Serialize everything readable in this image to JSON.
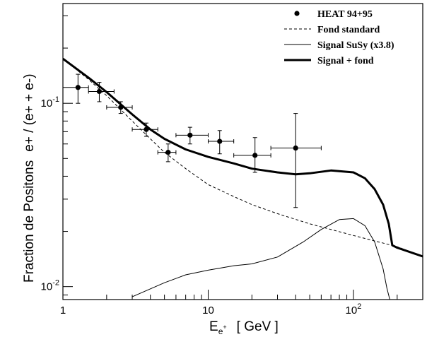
{
  "chart_data": {
    "type": "line",
    "xlabel": {
      "main": "E",
      "sub": "e",
      "sup": "+",
      "unit": "[ GeV ]"
    },
    "ylabel": {
      "main": "Fraction de Positons",
      "ratio": "e+ / (e+ + e-)"
    },
    "x_scale": "log",
    "y_scale": "log",
    "xlim": [
      1,
      300
    ],
    "ylim": [
      0.0085,
      0.35
    ],
    "x_ticks": [
      {
        "value": 1,
        "label": "1"
      },
      {
        "value": 10,
        "label": "10"
      },
      {
        "value": 100,
        "label": "10",
        "sup": "2"
      }
    ],
    "y_ticks": [
      {
        "value": 0.01,
        "label": "10",
        "sup": "-2"
      },
      {
        "value": 0.1,
        "label": "10",
        "sup": "-1"
      }
    ],
    "legend_position": "top-right",
    "series": [
      {
        "name": "HEAT 94+95",
        "kind": "points",
        "color": "#000000",
        "points": [
          {
            "x": 1.27,
            "y": 0.122,
            "xerr": [
              0.27,
              0.23
            ],
            "yerr": [
              0.022,
              0.022
            ]
          },
          {
            "x": 1.78,
            "y": 0.116,
            "xerr": [
              0.28,
              0.47
            ],
            "yerr": [
              0.014,
              0.014
            ]
          },
          {
            "x": 2.5,
            "y": 0.095,
            "xerr": [
              0.5,
              0.5
            ],
            "yerr": [
              0.007,
              0.007
            ]
          },
          {
            "x": 3.75,
            "y": 0.072,
            "xerr": [
              0.75,
              0.75
            ],
            "yerr": [
              0.006,
              0.006
            ]
          },
          {
            "x": 5.3,
            "y": 0.054,
            "xerr": [
              0.8,
              0.7
            ],
            "yerr": [
              0.006,
              0.006
            ]
          },
          {
            "x": 7.5,
            "y": 0.067,
            "xerr": [
              1.5,
              2.5
            ],
            "yerr": [
              0.007,
              0.007
            ]
          },
          {
            "x": 12,
            "y": 0.062,
            "xerr": [
              2,
              3
            ],
            "yerr": [
              0.009,
              0.009
            ]
          },
          {
            "x": 21,
            "y": 0.052,
            "xerr": [
              6,
              6
            ],
            "yerr": [
              0.01,
              0.013
            ]
          },
          {
            "x": 40,
            "y": 0.057,
            "xerr": [
              13,
              20
            ],
            "yerr": [
              0.03,
              0.031
            ]
          }
        ]
      },
      {
        "name": "Fond standard",
        "kind": "line",
        "style": "dashed",
        "color": "#000000",
        "x": [
          1,
          1.5,
          2,
          3,
          4,
          5,
          7,
          10,
          15,
          20,
          30,
          50,
          100,
          200,
          300
        ],
        "y": [
          0.175,
          0.135,
          0.11,
          0.08,
          0.064,
          0.054,
          0.044,
          0.036,
          0.031,
          0.028,
          0.025,
          0.022,
          0.019,
          0.0165,
          0.0146
        ]
      },
      {
        "name": "Signal SuSy (x3.8)",
        "kind": "line",
        "style": "thin",
        "color": "#000000",
        "x": [
          3,
          5,
          7,
          10,
          15,
          20,
          30,
          45,
          60,
          80,
          100,
          120,
          140,
          160,
          170,
          178
        ],
        "y": [
          0.0088,
          0.0105,
          0.0116,
          0.0123,
          0.013,
          0.0133,
          0.0145,
          0.0175,
          0.0205,
          0.0232,
          0.0235,
          0.0215,
          0.0175,
          0.0125,
          0.0098,
          0.0085
        ]
      },
      {
        "name": "Signal + fond",
        "kind": "line",
        "style": "thick",
        "color": "#000000",
        "x": [
          1,
          1.5,
          2,
          3,
          4,
          5,
          7,
          10,
          15,
          20,
          30,
          40,
          50,
          70,
          100,
          120,
          140,
          160,
          175,
          185,
          200,
          300
        ],
        "y": [
          0.175,
          0.138,
          0.115,
          0.087,
          0.072,
          0.064,
          0.056,
          0.051,
          0.047,
          0.044,
          0.042,
          0.041,
          0.0415,
          0.043,
          0.042,
          0.039,
          0.034,
          0.028,
          0.022,
          0.0168,
          0.0163,
          0.0146
        ]
      }
    ]
  }
}
